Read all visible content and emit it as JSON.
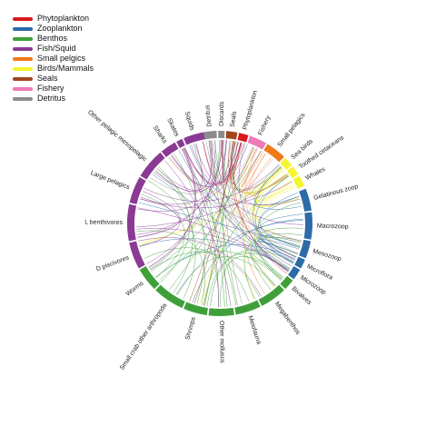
{
  "legend": [
    {
      "label": "Phytoplankton",
      "color": "#d7191c"
    },
    {
      "label": "Zooplankton",
      "color": "#2c6ba8"
    },
    {
      "label": "Benthos",
      "color": "#3fa03a"
    },
    {
      "label": "Fish/Squid",
      "color": "#8a3a92"
    },
    {
      "label": "Small pelgics",
      "color": "#f07a1a"
    },
    {
      "label": "Birds/Mammals",
      "color": "#f5f52e"
    },
    {
      "label": "Seals",
      "color": "#a0461e"
    },
    {
      "label": "Fishery",
      "color": "#ee7ab8"
    },
    {
      "label": "Detritus",
      "color": "#8c8c8c"
    }
  ],
  "segments": [
    {
      "label": "Detritus",
      "group": "Detritus"
    },
    {
      "label": "Discards",
      "group": "Detritus"
    },
    {
      "label": "Seals",
      "group": "Seals"
    },
    {
      "label": "Phytoplankton",
      "group": "Phytoplankton"
    },
    {
      "label": "Fishery",
      "group": "Fishery"
    },
    {
      "label": "Small pelagics",
      "group": "Small pelgics"
    },
    {
      "label": "Sea birds",
      "group": "Birds/Mammals"
    },
    {
      "label": "Toothed cetaceans",
      "group": "Birds/Mammals"
    },
    {
      "label": "Whales",
      "group": "Birds/Mammals"
    },
    {
      "label": "Gelatinous zoop",
      "group": "Zooplankton"
    },
    {
      "label": "Macrozoop",
      "group": "Zooplankton"
    },
    {
      "label": "Mesozoop",
      "group": "Zooplankton"
    },
    {
      "label": "Microflora",
      "group": "Zooplankton"
    },
    {
      "label": "Microzoop",
      "group": "Zooplankton"
    },
    {
      "label": "Bivalves",
      "group": "Benthos"
    },
    {
      "label": "Megabenthos",
      "group": "Benthos"
    },
    {
      "label": "Meiofauna",
      "group": "Benthos"
    },
    {
      "label": "Other molluscs",
      "group": "Benthos"
    },
    {
      "label": "Shrimps",
      "group": "Benthos"
    },
    {
      "label": "Small crab other arthropoda",
      "group": "Benthos"
    },
    {
      "label": "Worms",
      "group": "Benthos"
    },
    {
      "label": "D piscivores",
      "group": "Fish/Squid"
    },
    {
      "label": "L benthivores",
      "group": "Fish/Squid"
    },
    {
      "label": "Large pelagics",
      "group": "Fish/Squid"
    },
    {
      "label": "Other pelagic mesopelagic",
      "group": "Fish/Squid"
    },
    {
      "label": "Sharks",
      "group": "Fish/Squid"
    },
    {
      "label": "Skates",
      "group": "Fish/Squid"
    },
    {
      "label": "Squids",
      "group": "Fish/Squid"
    }
  ]
}
